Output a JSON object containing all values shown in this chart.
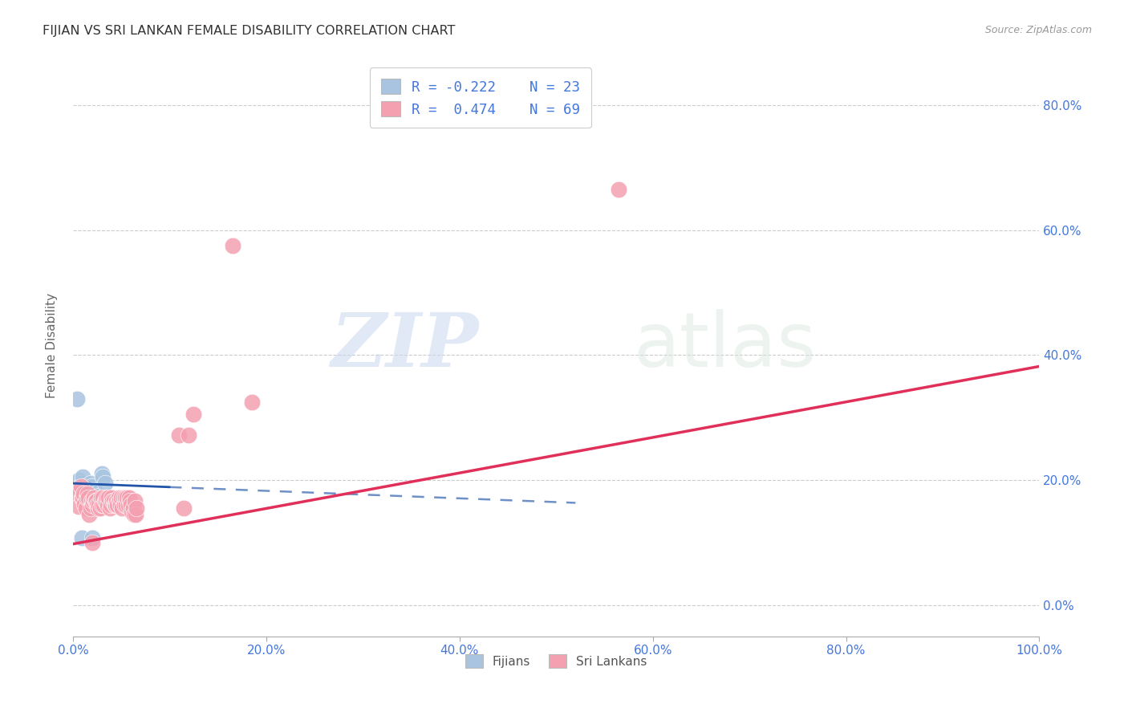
{
  "title": "FIJIAN VS SRI LANKAN FEMALE DISABILITY CORRELATION CHART",
  "source": "Source: ZipAtlas.com",
  "ylabel": "Female Disability",
  "xlabel": "",
  "watermark_zip": "ZIP",
  "watermark_atlas": "atlas",
  "fijian_R": -0.222,
  "fijian_N": 23,
  "srilankan_R": 0.474,
  "srilankan_N": 69,
  "fijian_color": "#a8c4e0",
  "srilankan_color": "#f4a0b0",
  "fijian_line_color": "#2255aa",
  "srilankan_line_color": "#e0305a",
  "title_color": "#333333",
  "axis_label_color": "#4477dd",
  "background_color": "#ffffff",
  "fijian_points": [
    [
      0.004,
      0.195
    ],
    [
      0.006,
      0.2
    ],
    [
      0.007,
      0.185
    ],
    [
      0.009,
      0.195
    ],
    [
      0.01,
      0.205
    ],
    [
      0.012,
      0.19
    ],
    [
      0.013,
      0.175
    ],
    [
      0.015,
      0.185
    ],
    [
      0.016,
      0.18
    ],
    [
      0.018,
      0.195
    ],
    [
      0.019,
      0.19
    ],
    [
      0.021,
      0.17
    ],
    [
      0.022,
      0.183
    ],
    [
      0.024,
      0.175
    ],
    [
      0.025,
      0.18
    ],
    [
      0.027,
      0.175
    ],
    [
      0.028,
      0.17
    ],
    [
      0.03,
      0.21
    ],
    [
      0.031,
      0.205
    ],
    [
      0.033,
      0.195
    ],
    [
      0.009,
      0.108
    ],
    [
      0.02,
      0.108
    ],
    [
      0.004,
      0.33
    ]
  ],
  "srilankan_points": [
    [
      0.004,
      0.178
    ],
    [
      0.006,
      0.158
    ],
    [
      0.008,
      0.19
    ],
    [
      0.009,
      0.172
    ],
    [
      0.01,
      0.172
    ],
    [
      0.011,
      0.178
    ],
    [
      0.012,
      0.162
    ],
    [
      0.013,
      0.156
    ],
    [
      0.014,
      0.172
    ],
    [
      0.015,
      0.178
    ],
    [
      0.016,
      0.172
    ],
    [
      0.017,
      0.145
    ],
    [
      0.018,
      0.156
    ],
    [
      0.019,
      0.167
    ],
    [
      0.02,
      0.161
    ],
    [
      0.021,
      0.167
    ],
    [
      0.022,
      0.172
    ],
    [
      0.023,
      0.167
    ],
    [
      0.024,
      0.167
    ],
    [
      0.025,
      0.161
    ],
    [
      0.026,
      0.156
    ],
    [
      0.027,
      0.161
    ],
    [
      0.028,
      0.156
    ],
    [
      0.029,
      0.172
    ],
    [
      0.03,
      0.161
    ],
    [
      0.031,
      0.172
    ],
    [
      0.032,
      0.161
    ],
    [
      0.033,
      0.167
    ],
    [
      0.034,
      0.167
    ],
    [
      0.035,
      0.172
    ],
    [
      0.036,
      0.161
    ],
    [
      0.037,
      0.172
    ],
    [
      0.038,
      0.156
    ],
    [
      0.039,
      0.161
    ],
    [
      0.04,
      0.172
    ],
    [
      0.041,
      0.167
    ],
    [
      0.042,
      0.167
    ],
    [
      0.043,
      0.161
    ],
    [
      0.044,
      0.161
    ],
    [
      0.045,
      0.167
    ],
    [
      0.046,
      0.161
    ],
    [
      0.047,
      0.172
    ],
    [
      0.048,
      0.167
    ],
    [
      0.049,
      0.161
    ],
    [
      0.05,
      0.172
    ],
    [
      0.051,
      0.156
    ],
    [
      0.052,
      0.172
    ],
    [
      0.053,
      0.161
    ],
    [
      0.054,
      0.172
    ],
    [
      0.055,
      0.161
    ],
    [
      0.056,
      0.172
    ],
    [
      0.057,
      0.161
    ],
    [
      0.058,
      0.172
    ],
    [
      0.059,
      0.167
    ],
    [
      0.06,
      0.161
    ],
    [
      0.061,
      0.15
    ],
    [
      0.062,
      0.156
    ],
    [
      0.063,
      0.145
    ],
    [
      0.064,
      0.167
    ],
    [
      0.065,
      0.145
    ],
    [
      0.066,
      0.156
    ],
    [
      0.11,
      0.272
    ],
    [
      0.115,
      0.156
    ],
    [
      0.12,
      0.272
    ],
    [
      0.125,
      0.305
    ],
    [
      0.165,
      0.575
    ],
    [
      0.185,
      0.325
    ],
    [
      0.565,
      0.665
    ],
    [
      0.02,
      0.1
    ]
  ],
  "xlim": [
    0.0,
    1.0
  ],
  "ylim": [
    -0.05,
    0.88
  ],
  "xticks": [
    0.0,
    0.2,
    0.4,
    0.6,
    0.8,
    1.0
  ],
  "yticks": [
    0.0,
    0.2,
    0.4,
    0.6,
    0.8
  ],
  "xticklabels": [
    "0.0%",
    "20.0%",
    "40.0%",
    "60.0%",
    "80.0%",
    "100.0%"
  ],
  "yticklabels_right": [
    "0.0%",
    "20.0%",
    "40.0%",
    "60.0%",
    "80.0%"
  ],
  "grid_color": "#cccccc",
  "legend_R_color": "#4477dd",
  "fijian_line_solid_end": 0.1,
  "srilankan_line_end": 1.0,
  "fijian_line_start_y": 0.195,
  "fijian_line_end_y": 0.135,
  "srilankan_line_start_y": 0.098,
  "srilankan_line_end_y": 0.382
}
